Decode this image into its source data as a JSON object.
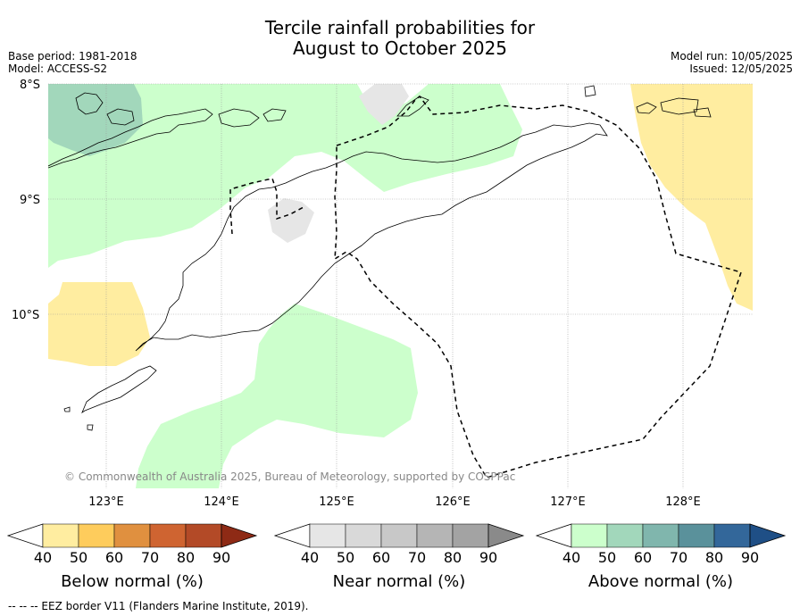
{
  "title_line1": "Tercile rainfall probabilities for",
  "title_line2": "August to October 2025",
  "meta_left": [
    "Base period: 1981-2018",
    "Model: ACCESS-S2"
  ],
  "meta_right": [
    "Model run: 10/05/2025",
    "Issued: 12/05/2025"
  ],
  "lat_labels": [
    "8°S",
    "9°S",
    "10°S"
  ],
  "lon_labels": [
    "123°E",
    "124°E",
    "125°E",
    "126°E",
    "127°E",
    "128°E"
  ],
  "copyright": "© Commonwealth of Australia 2025, Bureau of Meteorology, supported by COSPPac",
  "footer": "--  --  -- EEZ border V11 (Flanders Marine Institute, 2019).",
  "colorbars": [
    {
      "name": "Below normal (%)",
      "ticks": [
        "40",
        "50",
        "60",
        "70",
        "80",
        "90"
      ],
      "colors": [
        "#ffffff",
        "#ffeda0",
        "#fecc5c",
        "#e0903f",
        "#cf6431",
        "#b34a27",
        "#8e2a15"
      ]
    },
    {
      "name": "Near normal (%)",
      "ticks": [
        "40",
        "50",
        "60",
        "70",
        "80",
        "90"
      ],
      "colors": [
        "#ffffff",
        "#e6e6e6",
        "#d9d9d9",
        "#c8c8c8",
        "#b5b5b5",
        "#a3a3a3",
        "#8a8a8a"
      ]
    },
    {
      "name": "Above normal (%)",
      "ticks": [
        "40",
        "50",
        "60",
        "70",
        "80",
        "90"
      ],
      "colors": [
        "#ffffff",
        "#ccffcc",
        "#a2d7bb",
        "#80b6ad",
        "#5a919b",
        "#33679a",
        "#1f4f86"
      ]
    }
  ]
}
